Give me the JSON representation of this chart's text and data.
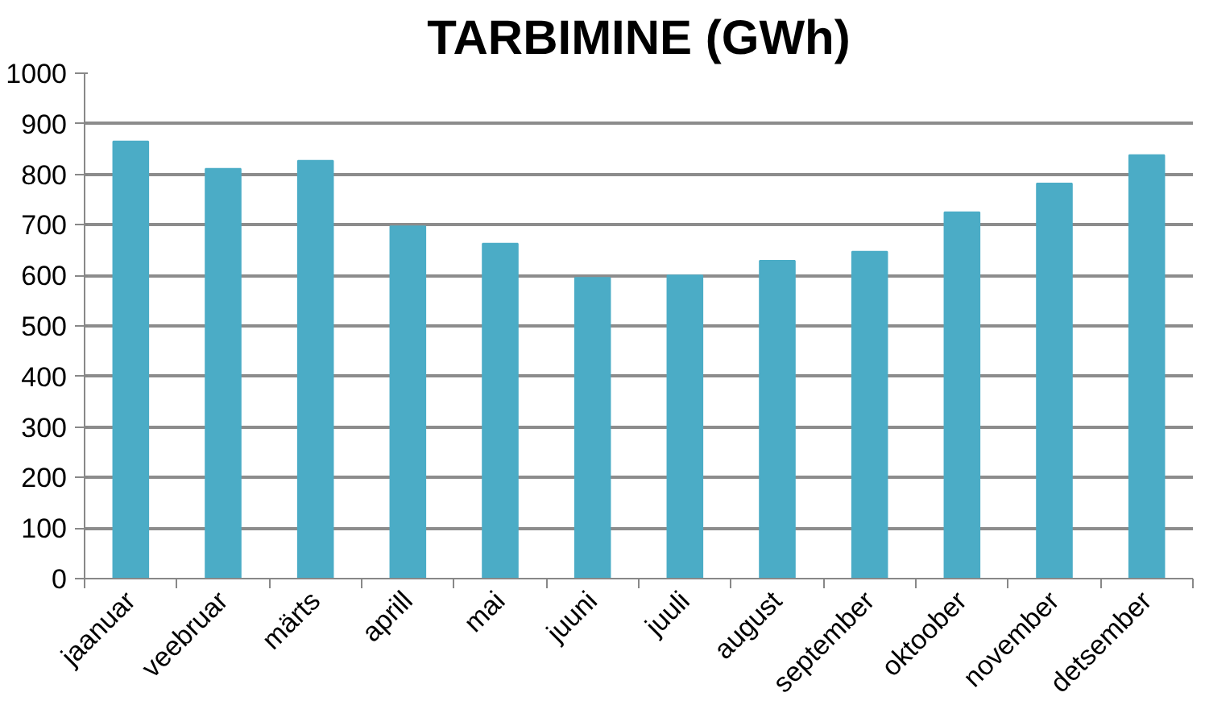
{
  "chart_data": {
    "type": "bar",
    "title": "TARBIMINE (GWh)",
    "categories": [
      "jaanuar",
      "veebruar",
      "märts",
      "aprill",
      "mai",
      "juuni",
      "juuli",
      "august",
      "september",
      "oktoober",
      "november",
      "detsember"
    ],
    "values": [
      865,
      811,
      827,
      697,
      663,
      595,
      600,
      629,
      647,
      725,
      782,
      838
    ],
    "color": "#4bacc6",
    "ylim": [
      0,
      1000
    ],
    "yticks": [
      0,
      100,
      200,
      300,
      400,
      500,
      600,
      700,
      800,
      900,
      1000
    ],
    "grid": "y"
  }
}
